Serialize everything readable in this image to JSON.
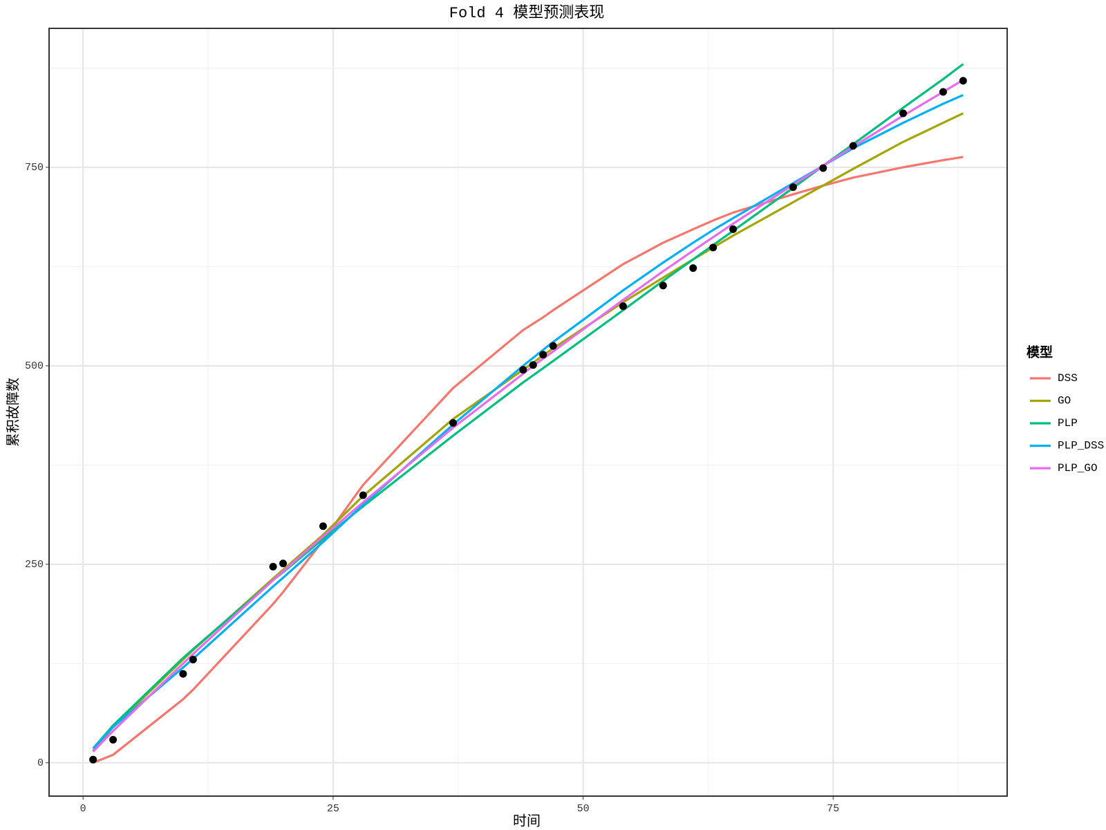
{
  "chart_data": {
    "type": "line",
    "title": "Fold 4 模型预测表现",
    "xlabel": "时间",
    "ylabel": "累积故障数",
    "legend_title": "模型",
    "legend_position": "right",
    "grid": true,
    "xlim": [
      -3.4,
      92.4
    ],
    "ylim": [
      -42,
      925
    ],
    "xticks": [
      0,
      25,
      50,
      75
    ],
    "yticks": [
      0,
      250,
      500,
      750
    ],
    "minor_xticks": [
      12.5,
      37.5,
      62.5,
      87.5
    ],
    "minor_yticks": [
      125,
      375,
      625,
      875
    ],
    "x": [
      1,
      3,
      10,
      11,
      19,
      20,
      24,
      28,
      37,
      44,
      45,
      46,
      47,
      54,
      58,
      61,
      63,
      65,
      71,
      74,
      77,
      82,
      86,
      88
    ],
    "series": [
      {
        "name": "DSS",
        "color": "#F8766D",
        "values": [
          0,
          10,
          80,
          92,
          200,
          215,
          280,
          350,
          472,
          545,
          553,
          561,
          570,
          628,
          655,
          672,
          683,
          693,
          716,
          727,
          737,
          750,
          759,
          763
        ]
      },
      {
        "name": "GO",
        "color": "#A3A500",
        "values": [
          15,
          45,
          130,
          142,
          232,
          243,
          287,
          336,
          433,
          495,
          504,
          513,
          522,
          580,
          611,
          634,
          649,
          664,
          706,
          727,
          748,
          782,
          806,
          818
        ]
      },
      {
        "name": "PLP",
        "color": "#00BF7D",
        "values": [
          18,
          47,
          132,
          143,
          230,
          240,
          282,
          323,
          412,
          479,
          488,
          497,
          506,
          570,
          607,
          634,
          652,
          670,
          724,
          752,
          779,
          825,
          861,
          880
        ]
      },
      {
        "name": "PLP_DSS",
        "color": "#00B0F6",
        "values": [
          18,
          45,
          120,
          131,
          222,
          233,
          278,
          325,
          426,
          500,
          510,
          520,
          530,
          595,
          630,
          655,
          671,
          686,
          730,
          752,
          774,
          806,
          830,
          841
        ]
      },
      {
        "name": "PLP_GO",
        "color": "#E76BF3",
        "values": [
          14,
          40,
          125,
          137,
          230,
          241,
          285,
          328,
          422,
          490,
          500,
          509,
          518,
          583,
          619,
          645,
          662,
          679,
          728,
          752,
          776,
          815,
          845,
          860
        ]
      }
    ],
    "points": {
      "color": "#000000",
      "values": [
        4,
        29,
        112,
        130,
        247,
        251,
        298,
        337,
        428,
        495,
        501,
        514,
        525,
        575,
        601,
        623,
        649,
        672,
        725,
        749,
        777,
        818,
        845,
        859
      ]
    }
  }
}
